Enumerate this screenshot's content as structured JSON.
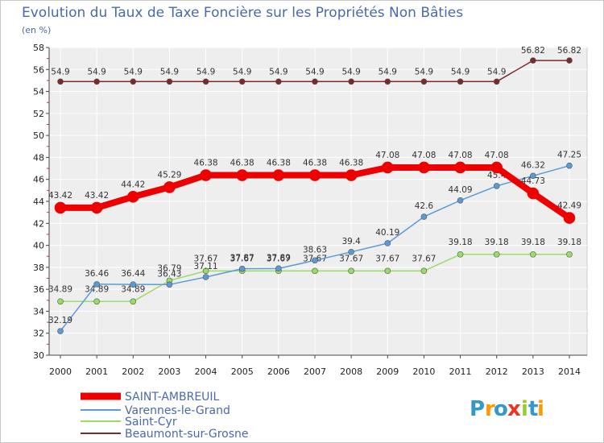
{
  "chart_data": {
    "type": "line",
    "title": "Evolution du Taux de Taxe Foncière sur les Propriétés Non Bâties",
    "subtitle": "(en %)",
    "xlabel": "",
    "ylabel": "",
    "ylim": [
      30,
      58
    ],
    "yticks": [
      30,
      32,
      34,
      36,
      38,
      40,
      42,
      44,
      46,
      48,
      50,
      52,
      54,
      56,
      58
    ],
    "grid": true,
    "legend_position": "bottom-left",
    "x": [
      2000,
      2001,
      2002,
      2003,
      2004,
      2005,
      2006,
      2007,
      2008,
      2009,
      2010,
      2011,
      2012,
      2013,
      2014
    ],
    "series": [
      {
        "name": "Beaumont-sur-Grosne",
        "color": "#7a2a2a",
        "values": [
          54.9,
          54.9,
          54.9,
          54.9,
          54.9,
          54.9,
          54.9,
          54.9,
          54.9,
          54.9,
          54.9,
          54.9,
          54.9,
          56.82,
          56.82
        ],
        "labels": [
          "54.9",
          "54.9",
          "54.9",
          "54.9",
          "54.9",
          "54.9",
          "54.9",
          "54.9",
          "54.9",
          "54.9",
          "54.9",
          "54.9",
          "54.9",
          "56.82",
          "56.82"
        ]
      },
      {
        "name": "Saint-Cyr",
        "color": "#99dd66",
        "values": [
          34.89,
          34.89,
          34.89,
          36.79,
          37.67,
          37.67,
          37.67,
          37.67,
          37.67,
          37.67,
          37.67,
          39.18,
          39.18,
          39.18,
          39.18
        ],
        "labels": [
          "34.89",
          "34.89",
          "34.89",
          "36.79",
          "37.67",
          "37.67",
          "37.67",
          "37.67",
          "37.67",
          "37.67",
          "37.67",
          "39.18",
          "39.18",
          "39.18",
          "39.18"
        ]
      },
      {
        "name": "Varennes-le-Grand",
        "color": "#5b9bd5",
        "values": [
          32.19,
          36.46,
          36.44,
          36.43,
          37.11,
          37.87,
          37.89,
          38.63,
          39.4,
          40.19,
          42.6,
          44.09,
          45.4,
          46.32,
          47.25
        ],
        "labels": [
          "32.19",
          "36.46",
          "36.44",
          "36.43",
          "37.11",
          "37.87",
          "37.89",
          "38.63",
          "39.4",
          "40.19",
          "42.6",
          "44.09",
          "45.4",
          "46.32",
          "47.25"
        ]
      },
      {
        "name": "SAINT-AMBREUIL",
        "color": "#ee0000",
        "values": [
          43.42,
          43.42,
          44.42,
          45.29,
          46.38,
          46.38,
          46.38,
          46.38,
          46.38,
          47.08,
          47.08,
          47.08,
          47.08,
          44.73,
          42.49
        ],
        "labels": [
          "43.42",
          "43.42",
          "44.42",
          "45.29",
          "46.38",
          "46.38",
          "46.38",
          "46.38",
          "46.38",
          "47.08",
          "47.08",
          "47.08",
          "47.08",
          "44.73",
          "42.49"
        ]
      }
    ],
    "legend": [
      "SAINT-AMBREUIL",
      "Varennes-le-Grand",
      "Saint-Cyr",
      "Beaumont-sur-Grosne"
    ]
  },
  "logo": {
    "letters": [
      "P",
      "r",
      "o",
      "x",
      "i",
      "t",
      "i"
    ],
    "colors": [
      "#3399cc",
      "#ff9900",
      "#3399cc",
      "#ee3322",
      "#99cc33",
      "#3399cc",
      "#ff9900"
    ]
  }
}
